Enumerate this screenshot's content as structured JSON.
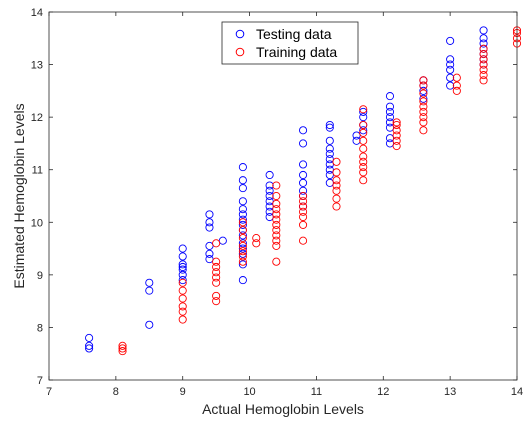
{
  "chart_data": {
    "type": "scatter",
    "title": "",
    "xlabel": "Actual Hemoglobin Levels",
    "ylabel": "Estimated Hemoglobin Levels",
    "xlim": [
      7,
      14
    ],
    "ylim": [
      7,
      14
    ],
    "xticks": [
      "7",
      "8",
      "9",
      "10",
      "11",
      "12",
      "13",
      "14"
    ],
    "yticks": [
      "7",
      "8",
      "9",
      "10",
      "11",
      "12",
      "13",
      "14"
    ],
    "grid": false,
    "legend_position": "top-center",
    "series": [
      {
        "name": "Testing data",
        "color": "#0000ff",
        "marker": "open-circle",
        "points": [
          [
            7.6,
            7.6
          ],
          [
            7.6,
            7.65
          ],
          [
            7.6,
            7.8
          ],
          [
            8.5,
            8.05
          ],
          [
            8.5,
            8.7
          ],
          [
            8.5,
            8.85
          ],
          [
            9.0,
            8.9
          ],
          [
            9.0,
            9.0
          ],
          [
            9.0,
            9.1
          ],
          [
            9.0,
            9.15
          ],
          [
            9.0,
            9.2
          ],
          [
            9.0,
            9.35
          ],
          [
            9.0,
            9.5
          ],
          [
            9.4,
            9.3
          ],
          [
            9.4,
            9.4
          ],
          [
            9.4,
            9.55
          ],
          [
            9.4,
            9.9
          ],
          [
            9.4,
            10.0
          ],
          [
            9.4,
            10.15
          ],
          [
            9.6,
            9.65
          ],
          [
            9.9,
            8.9
          ],
          [
            9.9,
            9.2
          ],
          [
            9.9,
            9.4
          ],
          [
            9.9,
            9.5
          ],
          [
            9.9,
            9.6
          ],
          [
            9.9,
            9.75
          ],
          [
            9.9,
            9.85
          ],
          [
            9.9,
            9.95
          ],
          [
            9.9,
            10.05
          ],
          [
            9.9,
            10.15
          ],
          [
            9.9,
            10.25
          ],
          [
            9.9,
            10.4
          ],
          [
            9.9,
            10.65
          ],
          [
            9.9,
            10.8
          ],
          [
            9.9,
            11.05
          ],
          [
            10.3,
            10.1
          ],
          [
            10.3,
            10.2
          ],
          [
            10.3,
            10.3
          ],
          [
            10.3,
            10.4
          ],
          [
            10.3,
            10.5
          ],
          [
            10.3,
            10.6
          ],
          [
            10.3,
            10.7
          ],
          [
            10.3,
            10.9
          ],
          [
            10.8,
            10.3
          ],
          [
            10.8,
            10.5
          ],
          [
            10.8,
            10.6
          ],
          [
            10.8,
            10.75
          ],
          [
            10.8,
            10.9
          ],
          [
            10.8,
            11.1
          ],
          [
            10.8,
            11.5
          ],
          [
            10.8,
            11.75
          ],
          [
            11.2,
            10.75
          ],
          [
            11.2,
            10.9
          ],
          [
            11.2,
            11.0
          ],
          [
            11.2,
            11.1
          ],
          [
            11.2,
            11.2
          ],
          [
            11.2,
            11.3
          ],
          [
            11.2,
            11.4
          ],
          [
            11.2,
            11.55
          ],
          [
            11.2,
            11.8
          ],
          [
            11.2,
            11.85
          ],
          [
            11.6,
            11.55
          ],
          [
            11.6,
            11.65
          ],
          [
            11.7,
            11.75
          ],
          [
            11.7,
            11.85
          ],
          [
            11.7,
            12.0
          ],
          [
            11.7,
            12.1
          ],
          [
            12.1,
            11.5
          ],
          [
            12.1,
            11.6
          ],
          [
            12.1,
            11.8
          ],
          [
            12.1,
            11.9
          ],
          [
            12.1,
            12.0
          ],
          [
            12.1,
            12.1
          ],
          [
            12.1,
            12.2
          ],
          [
            12.1,
            12.4
          ],
          [
            12.6,
            12.35
          ],
          [
            12.6,
            12.5
          ],
          [
            12.6,
            12.6
          ],
          [
            12.6,
            12.7
          ],
          [
            13.0,
            12.6
          ],
          [
            13.0,
            12.75
          ],
          [
            13.0,
            12.9
          ],
          [
            13.0,
            13.0
          ],
          [
            13.0,
            13.1
          ],
          [
            13.0,
            13.45
          ],
          [
            13.5,
            13.0
          ],
          [
            13.5,
            13.1
          ],
          [
            13.5,
            13.2
          ],
          [
            13.5,
            13.3
          ],
          [
            13.5,
            13.4
          ],
          [
            13.5,
            13.5
          ],
          [
            13.5,
            13.65
          ]
        ]
      },
      {
        "name": "Training data",
        "color": "#ff0000",
        "marker": "open-circle",
        "points": [
          [
            8.1,
            7.55
          ],
          [
            8.1,
            7.6
          ],
          [
            8.1,
            7.65
          ],
          [
            9.0,
            8.15
          ],
          [
            9.0,
            8.3
          ],
          [
            9.0,
            8.4
          ],
          [
            9.0,
            8.55
          ],
          [
            9.0,
            8.7
          ],
          [
            9.0,
            8.85
          ],
          [
            9.5,
            8.5
          ],
          [
            9.5,
            8.6
          ],
          [
            9.5,
            8.85
          ],
          [
            9.5,
            8.95
          ],
          [
            9.5,
            9.05
          ],
          [
            9.5,
            9.15
          ],
          [
            9.5,
            9.25
          ],
          [
            9.5,
            9.6
          ],
          [
            9.9,
            9.25
          ],
          [
            9.9,
            9.35
          ],
          [
            9.9,
            9.45
          ],
          [
            9.9,
            9.55
          ],
          [
            9.9,
            9.7
          ],
          [
            9.9,
            9.85
          ],
          [
            9.9,
            10.0
          ],
          [
            10.1,
            9.6
          ],
          [
            10.1,
            9.7
          ],
          [
            10.4,
            9.25
          ],
          [
            10.4,
            9.55
          ],
          [
            10.4,
            9.65
          ],
          [
            10.4,
            9.75
          ],
          [
            10.4,
            9.85
          ],
          [
            10.4,
            9.95
          ],
          [
            10.4,
            10.05
          ],
          [
            10.4,
            10.15
          ],
          [
            10.4,
            10.25
          ],
          [
            10.4,
            10.35
          ],
          [
            10.4,
            10.5
          ],
          [
            10.4,
            10.7
          ],
          [
            10.8,
            9.65
          ],
          [
            10.8,
            9.95
          ],
          [
            10.8,
            10.1
          ],
          [
            10.8,
            10.2
          ],
          [
            10.8,
            10.3
          ],
          [
            10.8,
            10.4
          ],
          [
            10.8,
            10.5
          ],
          [
            11.3,
            10.3
          ],
          [
            11.3,
            10.45
          ],
          [
            11.3,
            10.6
          ],
          [
            11.3,
            10.7
          ],
          [
            11.3,
            10.8
          ],
          [
            11.3,
            10.95
          ],
          [
            11.3,
            11.15
          ],
          [
            11.7,
            10.8
          ],
          [
            11.7,
            10.95
          ],
          [
            11.7,
            11.05
          ],
          [
            11.7,
            11.15
          ],
          [
            11.7,
            11.25
          ],
          [
            11.7,
            11.4
          ],
          [
            11.7,
            11.55
          ],
          [
            11.7,
            11.7
          ],
          [
            11.7,
            11.85
          ],
          [
            11.7,
            12.15
          ],
          [
            12.2,
            11.45
          ],
          [
            12.2,
            11.55
          ],
          [
            12.2,
            11.65
          ],
          [
            12.2,
            11.75
          ],
          [
            12.2,
            11.85
          ],
          [
            12.2,
            11.9
          ],
          [
            12.6,
            11.75
          ],
          [
            12.6,
            11.9
          ],
          [
            12.6,
            12.0
          ],
          [
            12.6,
            12.1
          ],
          [
            12.6,
            12.2
          ],
          [
            12.6,
            12.3
          ],
          [
            12.6,
            12.45
          ],
          [
            12.6,
            12.6
          ],
          [
            12.6,
            12.7
          ],
          [
            13.1,
            12.5
          ],
          [
            13.1,
            12.6
          ],
          [
            13.1,
            12.75
          ],
          [
            13.5,
            12.7
          ],
          [
            13.5,
            12.8
          ],
          [
            13.5,
            12.9
          ],
          [
            13.5,
            13.0
          ],
          [
            13.5,
            13.1
          ],
          [
            13.5,
            13.2
          ],
          [
            13.5,
            13.3
          ],
          [
            14.0,
            13.4
          ],
          [
            14.0,
            13.5
          ],
          [
            14.0,
            13.6
          ],
          [
            14.0,
            13.65
          ]
        ]
      }
    ]
  }
}
